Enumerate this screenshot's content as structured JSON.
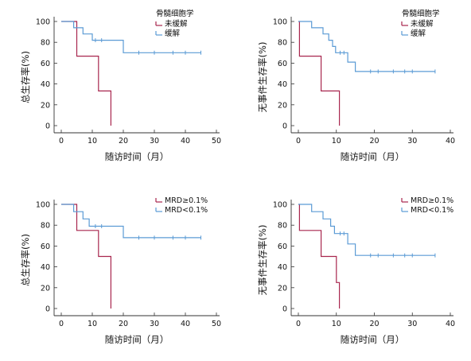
{
  "colors": {
    "red": "#a8264e",
    "blue": "#5b9bd5",
    "axis": "#333333"
  },
  "chart_data": [
    {
      "type": "line",
      "xlabel": "随访时间（月）",
      "ylabel": "总生存率(%)",
      "xlim": [
        0,
        50
      ],
      "ylim": [
        0,
        100
      ],
      "xticks": [
        0,
        10,
        20,
        30,
        40,
        50
      ],
      "yticks": [
        0,
        20,
        40,
        60,
        80,
        100
      ],
      "legend_title": "骨髓细胞学",
      "series": [
        {
          "name": "未缓解",
          "color": "#a8264e",
          "steps": [
            [
              0,
              100
            ],
            [
              5,
              100
            ],
            [
              5,
              66.7
            ],
            [
              12,
              66.7
            ],
            [
              12,
              33.3
            ],
            [
              16,
              33.3
            ],
            [
              16,
              0
            ]
          ],
          "censors": []
        },
        {
          "name": "缓解",
          "color": "#5b9bd5",
          "steps": [
            [
              0,
              100
            ],
            [
              4,
              100
            ],
            [
              4,
              94
            ],
            [
              7,
              94
            ],
            [
              7,
              88
            ],
            [
              10,
              88
            ],
            [
              10,
              82
            ],
            [
              20,
              82
            ],
            [
              20,
              70
            ],
            [
              45,
              70
            ]
          ],
          "censors": [
            [
              11,
              82
            ],
            [
              13,
              82
            ],
            [
              25,
              70
            ],
            [
              30,
              70
            ],
            [
              36,
              70
            ],
            [
              40,
              70
            ],
            [
              45,
              70
            ]
          ]
        }
      ]
    },
    {
      "type": "line",
      "xlabel": "随访时间（月）",
      "ylabel": "无事件生存率(%)",
      "xlim": [
        0,
        40
      ],
      "ylim": [
        0,
        100
      ],
      "xticks": [
        0,
        10,
        20,
        30,
        40
      ],
      "yticks": [
        0,
        20,
        40,
        60,
        80,
        100
      ],
      "legend_title": "骨髓细胞学",
      "series": [
        {
          "name": "未缓解",
          "color": "#a8264e",
          "steps": [
            [
              0,
              100
            ],
            [
              0.3,
              100
            ],
            [
              0.3,
              66.7
            ],
            [
              6,
              66.7
            ],
            [
              6,
              33.3
            ],
            [
              10.8,
              33.3
            ],
            [
              10.8,
              0
            ]
          ],
          "censors": []
        },
        {
          "name": "缓解",
          "color": "#5b9bd5",
          "steps": [
            [
              0,
              100
            ],
            [
              3.5,
              100
            ],
            [
              3.5,
              94
            ],
            [
              6.5,
              94
            ],
            [
              6.5,
              88
            ],
            [
              8,
              88
            ],
            [
              8,
              82
            ],
            [
              9,
              82
            ],
            [
              9,
              76
            ],
            [
              9.8,
              76
            ],
            [
              9.8,
              70
            ],
            [
              13,
              70
            ],
            [
              13,
              61
            ],
            [
              15,
              61
            ],
            [
              15,
              52
            ],
            [
              36,
              52
            ]
          ],
          "censors": [
            [
              11,
              70
            ],
            [
              12,
              70
            ],
            [
              19,
              52
            ],
            [
              21,
              52
            ],
            [
              25,
              52
            ],
            [
              28,
              52
            ],
            [
              30,
              52
            ],
            [
              36,
              52
            ]
          ]
        }
      ]
    },
    {
      "type": "line",
      "xlabel": "随访时间（月）",
      "ylabel": "总生存率(%)",
      "xlim": [
        0,
        50
      ],
      "ylim": [
        0,
        100
      ],
      "xticks": [
        0,
        10,
        20,
        30,
        40,
        50
      ],
      "yticks": [
        0,
        20,
        40,
        60,
        80,
        100
      ],
      "legend_title": "",
      "series": [
        {
          "name": "MRD≥0.1%",
          "color": "#a8264e",
          "steps": [
            [
              0,
              100
            ],
            [
              5,
              100
            ],
            [
              5,
              75
            ],
            [
              12,
              75
            ],
            [
              12,
              50
            ],
            [
              16,
              50
            ],
            [
              16,
              0
            ]
          ],
          "censors": []
        },
        {
          "name": "MRD<0.1%",
          "color": "#5b9bd5",
          "steps": [
            [
              0,
              100
            ],
            [
              4,
              100
            ],
            [
              4,
              93
            ],
            [
              7,
              93
            ],
            [
              7,
              86
            ],
            [
              9,
              86
            ],
            [
              9,
              79
            ],
            [
              20,
              79
            ],
            [
              20,
              68
            ],
            [
              45,
              68
            ]
          ],
          "censors": [
            [
              11,
              79
            ],
            [
              13,
              79
            ],
            [
              25,
              68
            ],
            [
              30,
              68
            ],
            [
              36,
              68
            ],
            [
              40,
              68
            ],
            [
              45,
              68
            ]
          ]
        }
      ]
    },
    {
      "type": "line",
      "xlabel": "随访时间（月）",
      "ylabel": "无事件生存率(%)",
      "xlim": [
        0,
        40
      ],
      "ylim": [
        0,
        100
      ],
      "xticks": [
        0,
        10,
        20,
        30,
        40
      ],
      "yticks": [
        0,
        20,
        40,
        60,
        80,
        100
      ],
      "legend_title": "",
      "series": [
        {
          "name": "MRD≥0.1%",
          "color": "#a8264e",
          "steps": [
            [
              0,
              100
            ],
            [
              0.3,
              100
            ],
            [
              0.3,
              75
            ],
            [
              6,
              75
            ],
            [
              6,
              50
            ],
            [
              10,
              50
            ],
            [
              10,
              25
            ],
            [
              10.8,
              25
            ],
            [
              10.8,
              0
            ]
          ],
          "censors": []
        },
        {
          "name": "MRD<0.1%",
          "color": "#5b9bd5",
          "steps": [
            [
              0,
              100
            ],
            [
              3.5,
              100
            ],
            [
              3.5,
              93
            ],
            [
              6.5,
              93
            ],
            [
              6.5,
              86
            ],
            [
              8.5,
              86
            ],
            [
              8.5,
              79
            ],
            [
              9.5,
              79
            ],
            [
              9.5,
              72
            ],
            [
              13,
              72
            ],
            [
              13,
              62
            ],
            [
              15,
              62
            ],
            [
              15,
              51
            ],
            [
              36,
              51
            ]
          ],
          "censors": [
            [
              11,
              72
            ],
            [
              12,
              72
            ],
            [
              19,
              51
            ],
            [
              21,
              51
            ],
            [
              25,
              51
            ],
            [
              28,
              51
            ],
            [
              30,
              51
            ],
            [
              36,
              51
            ]
          ]
        }
      ]
    }
  ]
}
